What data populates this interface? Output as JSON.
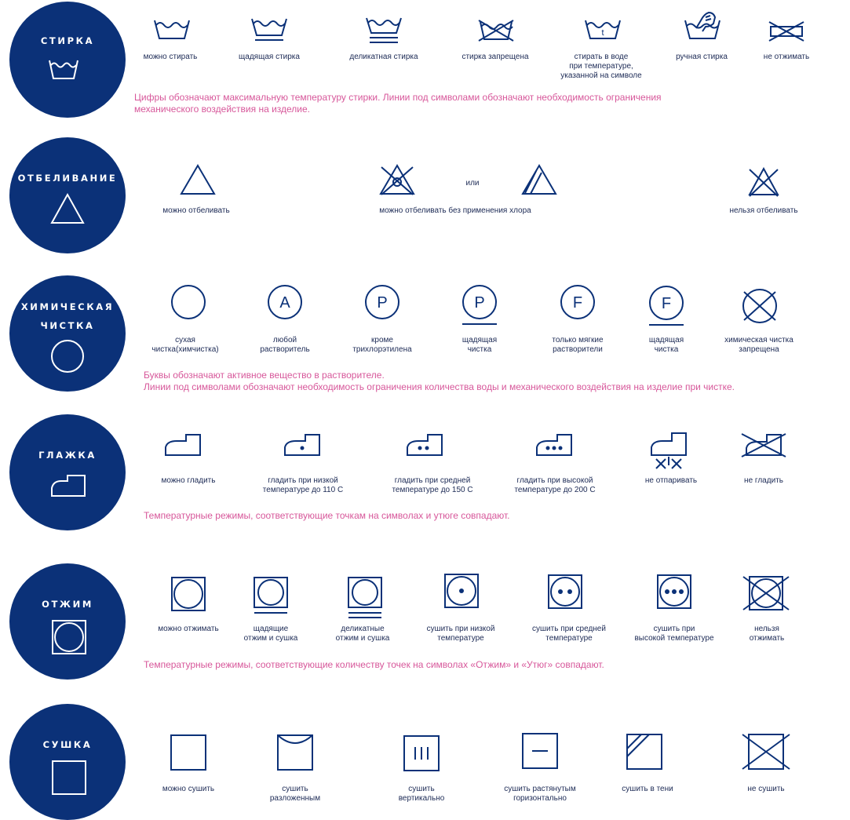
{
  "sections": {
    "wash": {
      "title": "СТИРКА",
      "items": [
        "можно стирать",
        "щадящая стирка",
        "деликатная стирка",
        "стирка запрещена",
        "стирать в воде\nпри температуре,\nуказанной на символе",
        "ручная стирка",
        "не отжимать"
      ],
      "temp_mark": "t",
      "note": "Цифры обозначают максимальную температуру стирки. Линии под символами обозначают необходимость ограничения\nмеханического воздействия на изделие."
    },
    "bleach": {
      "title": "ОТБЕЛИВАНИЕ",
      "items": [
        "можно отбеливать",
        "можно отбеливать без применения  хлора",
        "нельзя отбеливать"
      ],
      "or": "или"
    },
    "dry_clean": {
      "title": "ХИМИЧЕСКАЯ\nЧИСТКА",
      "letters": [
        "A",
        "P",
        "P",
        "F",
        "F"
      ],
      "items": [
        "сухая\nчистка(химчистка)",
        "любой\nрастворитель",
        "кроме\nтрихлорэтилена",
        "щадящая\nчистка",
        "только мягкие\nрастворители",
        "щадящая\nчистка",
        "химическая чистка\nзапрещена"
      ],
      "note": "Буквы обозначают активное вещество  в растворителе.\nЛинии под символами обозначают необходимость ограничения количества воды и механического  воздействия  на изделие при чистке."
    },
    "iron": {
      "title": "ГЛАЖКА",
      "items": [
        "можно гладить",
        "гладить при низкой\nтемпературе до 110 С",
        "гладить при средней\nтемпературе до 150 С",
        "гладить при высокой\nтемпературе до 200 С",
        "не отпаривать",
        "не гладить"
      ],
      "note": "Температурные режимы, соответствующие точкам на символах  и утюге совпадают."
    },
    "spin": {
      "title": "ОТЖИМ",
      "items": [
        "можно отжимать",
        "щадящие\nотжим и сушка",
        "деликатные\nотжим и сушка",
        "сушить при низкой\nтемпературе",
        "сушить при средней\nтемпературе",
        "сушить при\nвысокой температуре",
        "нельзя\nотжимать"
      ],
      "note": "Температурные режимы, соответствующие количеству точек на символах «Отжим» и «Утюг» совпадают."
    },
    "dry": {
      "title": "СУШКА",
      "items": [
        "можно сушить",
        "сушить\nразложенным",
        "сушить\nвертикально",
        "сушить растянутым\nгоризонтально",
        "сушить в тени",
        "не сушить"
      ]
    }
  },
  "colors": {
    "brand_blue": "#0b3178",
    "note_pink": "#d7579a",
    "label_text": "#1c2a55"
  },
  "icons": {
    "wash": [
      "washtub-icon",
      "washtub-gentle-icon",
      "washtub-delicate-icon",
      "washtub-crossed-icon",
      "washtub-temperature-icon",
      "washtub-hand-icon",
      "wring-crossed-icon"
    ],
    "bleach": [
      "triangle-icon",
      "triangle-crossed-circle-icon",
      "triangle-hatched-icon",
      "triangle-crossed-icon"
    ],
    "dry_clean": [
      "circle-icon",
      "circle-a-icon",
      "circle-p-icon",
      "circle-p-gentle-icon",
      "circle-f-icon",
      "circle-f-gentle-icon",
      "circle-crossed-icon"
    ],
    "iron": [
      "iron-icon",
      "iron-one-dot-icon",
      "iron-two-dots-icon",
      "iron-three-dots-icon",
      "iron-no-steam-icon",
      "iron-crossed-icon"
    ],
    "spin": [
      "tumble-icon",
      "tumble-gentle-icon",
      "tumble-delicate-icon",
      "tumble-one-dot-icon",
      "tumble-two-dots-icon",
      "tumble-three-dots-icon",
      "tumble-crossed-icon"
    ],
    "dry": [
      "square-icon",
      "square-flat-icon",
      "square-vertical-icon",
      "square-horizontal-icon",
      "square-shade-icon",
      "square-crossed-icon"
    ]
  }
}
